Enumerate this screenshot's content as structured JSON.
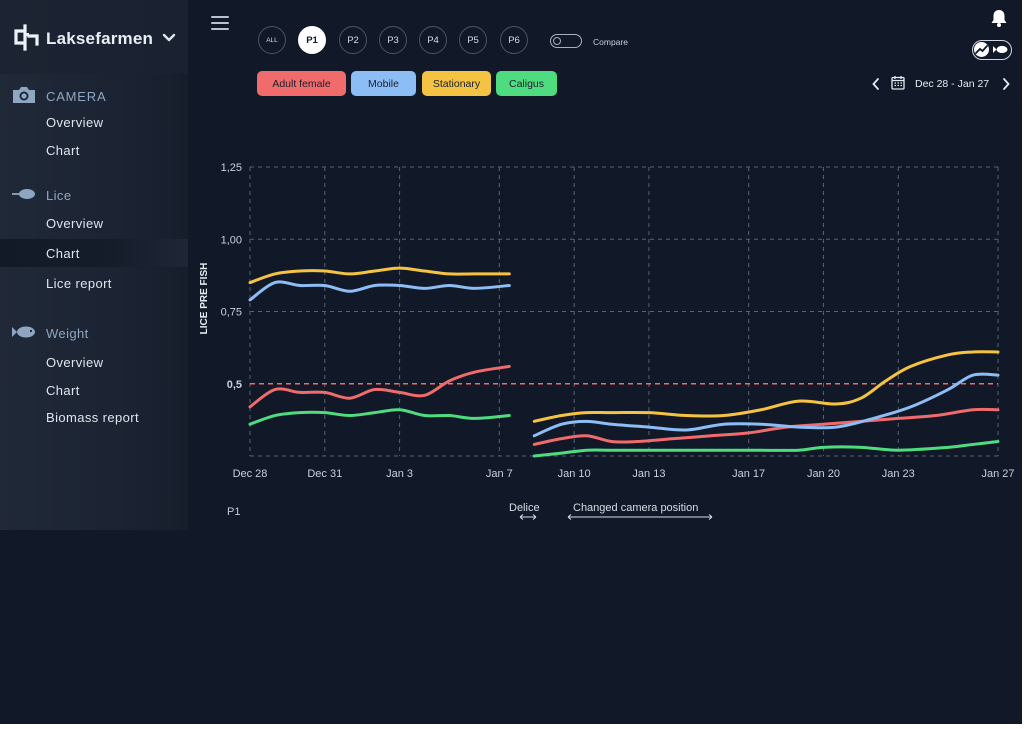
{
  "app": {
    "brand": "Laksefarmen"
  },
  "sidebar": {
    "sections": [
      {
        "name": "camera",
        "label": "CAMERA",
        "icon": "camera-icon",
        "items": [
          {
            "label": "Overview",
            "active": false
          },
          {
            "label": "Chart",
            "active": false
          }
        ]
      },
      {
        "name": "lice",
        "label": "Lice",
        "icon": "lice-icon",
        "items": [
          {
            "label": "Overview",
            "active": false
          },
          {
            "label": "Chart",
            "active": true
          },
          {
            "label": "Lice report",
            "active": false
          }
        ]
      },
      {
        "name": "weight",
        "label": "Weight",
        "icon": "fish-icon",
        "items": [
          {
            "label": "Overview",
            "active": false
          },
          {
            "label": "Chart",
            "active": false
          },
          {
            "label": "Biomass report",
            "active": false
          }
        ]
      }
    ]
  },
  "toolbar": {
    "pens": [
      "ALL",
      "P1",
      "P2",
      "P3",
      "P4",
      "P5",
      "P6"
    ],
    "active_pen": "P1",
    "compare_label": "Compare",
    "compare_on": false
  },
  "filters": [
    {
      "label": "Adult female",
      "color": "#f06b6b"
    },
    {
      "label": "Mobile",
      "color": "#8dbdf5"
    },
    {
      "label": "Stationary",
      "color": "#f5c343"
    },
    {
      "label": "Caligus",
      "color": "#4fdb80"
    }
  ],
  "date_range": "Dec 28 - Jan 27",
  "pen_label": "P1",
  "annotations": [
    {
      "label": "Delice"
    },
    {
      "label": "Changed camera position"
    }
  ],
  "chart_data": {
    "type": "line",
    "ylabel": "LICE PRE FISH",
    "y_ticks": [
      "1,25",
      "1,00",
      "0,75",
      "0,5"
    ],
    "y_tick_values": [
      1.25,
      1.0,
      0.75,
      0.5
    ],
    "ylim": [
      0.25,
      1.25
    ],
    "x_ticks": [
      "Dec 28",
      "Dec 31",
      "Jan 3",
      "Jan 7",
      "Jan 10",
      "Jan 13",
      "Jan 17",
      "Jan 20",
      "Jan 23",
      "Jan 27"
    ],
    "x_tick_days": [
      0,
      3,
      6,
      10,
      13,
      16,
      20,
      23,
      26,
      30
    ],
    "threshold": 0.5,
    "gap_days": [
      10.4,
      11.4
    ],
    "grid": true,
    "series": [
      {
        "name": "Adult female",
        "color": "#f06b6b",
        "points": [
          [
            0,
            0.42
          ],
          [
            1,
            0.48
          ],
          [
            2,
            0.47
          ],
          [
            3,
            0.47
          ],
          [
            4,
            0.45
          ],
          [
            5,
            0.48
          ],
          [
            6,
            0.47
          ],
          [
            7,
            0.46
          ],
          [
            8,
            0.51
          ],
          [
            9,
            0.54
          ],
          [
            10.4,
            0.56
          ],
          [
            11.4,
            0.29
          ],
          [
            12.5,
            0.31
          ],
          [
            13.5,
            0.32
          ],
          [
            14.5,
            0.3
          ],
          [
            15.5,
            0.3
          ],
          [
            17,
            0.31
          ],
          [
            18.5,
            0.32
          ],
          [
            20,
            0.33
          ],
          [
            21.5,
            0.35
          ],
          [
            23,
            0.36
          ],
          [
            24.5,
            0.37
          ],
          [
            26,
            0.38
          ],
          [
            27.5,
            0.39
          ],
          [
            29,
            0.41
          ],
          [
            30,
            0.41
          ]
        ]
      },
      {
        "name": "Mobile",
        "color": "#8dbdf5",
        "points": [
          [
            0,
            0.79
          ],
          [
            1,
            0.85
          ],
          [
            2,
            0.84
          ],
          [
            3,
            0.84
          ],
          [
            4,
            0.82
          ],
          [
            5,
            0.84
          ],
          [
            6,
            0.84
          ],
          [
            7,
            0.83
          ],
          [
            8,
            0.84
          ],
          [
            9,
            0.83
          ],
          [
            10.4,
            0.84
          ],
          [
            11.4,
            0.32
          ],
          [
            12.5,
            0.36
          ],
          [
            13.5,
            0.37
          ],
          [
            14.5,
            0.36
          ],
          [
            16,
            0.35
          ],
          [
            17.5,
            0.34
          ],
          [
            19,
            0.36
          ],
          [
            20.5,
            0.36
          ],
          [
            22,
            0.35
          ],
          [
            23.5,
            0.35
          ],
          [
            25,
            0.38
          ],
          [
            26.5,
            0.42
          ],
          [
            28,
            0.48
          ],
          [
            29,
            0.53
          ],
          [
            30,
            0.53
          ]
        ]
      },
      {
        "name": "Stationary",
        "color": "#f5c343",
        "points": [
          [
            0,
            0.85
          ],
          [
            1,
            0.88
          ],
          [
            2,
            0.89
          ],
          [
            3,
            0.89
          ],
          [
            4,
            0.88
          ],
          [
            5,
            0.89
          ],
          [
            6,
            0.9
          ],
          [
            7,
            0.89
          ],
          [
            8,
            0.88
          ],
          [
            9,
            0.88
          ],
          [
            10.4,
            0.88
          ],
          [
            11.4,
            0.37
          ],
          [
            12.5,
            0.39
          ],
          [
            13.5,
            0.4
          ],
          [
            14.5,
            0.4
          ],
          [
            16,
            0.4
          ],
          [
            17.5,
            0.39
          ],
          [
            19,
            0.39
          ],
          [
            20.5,
            0.41
          ],
          [
            22,
            0.44
          ],
          [
            23.5,
            0.43
          ],
          [
            24.5,
            0.45
          ],
          [
            25.5,
            0.51
          ],
          [
            26.5,
            0.56
          ],
          [
            28,
            0.6
          ],
          [
            29,
            0.61
          ],
          [
            30,
            0.61
          ]
        ]
      },
      {
        "name": "Caligus",
        "color": "#4fdb80",
        "points": [
          [
            0,
            0.36
          ],
          [
            1,
            0.39
          ],
          [
            2,
            0.4
          ],
          [
            3,
            0.4
          ],
          [
            4,
            0.39
          ],
          [
            5,
            0.4
          ],
          [
            6,
            0.41
          ],
          [
            7,
            0.39
          ],
          [
            8,
            0.39
          ],
          [
            9,
            0.38
          ],
          [
            10.4,
            0.39
          ],
          [
            11.4,
            0.25
          ],
          [
            12.5,
            0.26
          ],
          [
            13.5,
            0.27
          ],
          [
            14.5,
            0.27
          ],
          [
            16,
            0.27
          ],
          [
            17.5,
            0.27
          ],
          [
            19,
            0.27
          ],
          [
            20.5,
            0.27
          ],
          [
            22,
            0.27
          ],
          [
            23,
            0.28
          ],
          [
            24.5,
            0.28
          ],
          [
            26,
            0.27
          ],
          [
            28,
            0.28
          ],
          [
            29,
            0.29
          ],
          [
            30,
            0.3
          ]
        ]
      }
    ]
  }
}
